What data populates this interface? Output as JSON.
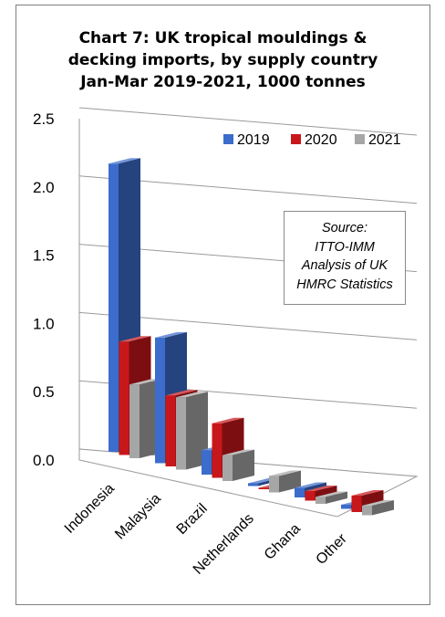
{
  "chart_data": {
    "type": "bar",
    "title_lines": [
      "Chart 7: UK tropical mouldings &",
      "decking imports, by supply country",
      "Jan-Mar 2019-2021, 1000 tonnes"
    ],
    "categories": [
      "Indonesia",
      "Malaysia",
      "Brazil",
      "Netherlands",
      "Ghana",
      "Other"
    ],
    "series": [
      {
        "name": "2019",
        "color": "#3c6ccc",
        "values": [
          2.11,
          0.92,
          0.18,
          0.02,
          0.07,
          0.03
        ]
      },
      {
        "name": "2020",
        "color": "#c8171b",
        "values": [
          0.83,
          0.52,
          0.4,
          0.01,
          0.07,
          0.12
        ]
      },
      {
        "name": "2021",
        "color": "#a6a6a6",
        "values": [
          0.54,
          0.53,
          0.19,
          0.12,
          0.05,
          0.07
        ]
      }
    ],
    "y_ticks": [
      "0.0",
      "0.5",
      "1.0",
      "1.5",
      "2.0",
      "2.5"
    ],
    "ylim": [
      0,
      2.5
    ],
    "legend_position": "top-right",
    "grid": true
  },
  "source_note": [
    "Source:",
    "ITTO-IMM",
    "Analysis of UK",
    "HMRC Statistics"
  ]
}
